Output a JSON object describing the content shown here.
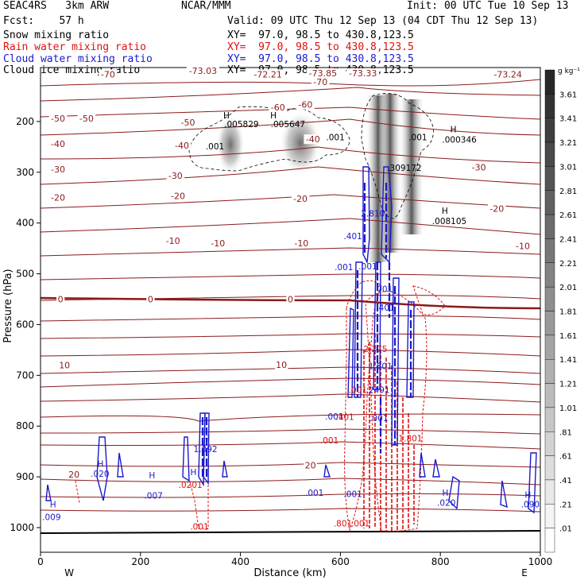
{
  "header": {
    "model": "SEAC4RS   3km ARW",
    "center": "NCAR/MMM",
    "init": "Init: 00 UTC Tue 10 Sep 13",
    "fcst": "Fcst:    57 h",
    "valid": "Valid: 09 UTC Thu 12 Sep 13 (04 CDT Thu 12 Sep 13)"
  },
  "legend": [
    {
      "name": "Snow mixing ratio",
      "xy": "XY=  97.0, 98.5 to 430.8,123.5",
      "color": "#000000"
    },
    {
      "name": "Rain water mixing ratio",
      "xy": "XY=  97.0, 98.5 to 430.8,123.5",
      "color": "#e01010"
    },
    {
      "name": "Cloud water mixing ratio",
      "xy": "XY=  97.0, 98.5 to 430.8,123.5",
      "color": "#1a1acc"
    },
    {
      "name": "Cloud ice mixing ratio",
      "xy": "XY=  97.0, 98.5 to 430.8,123.5",
      "color": "#000000"
    }
  ],
  "colorbar": {
    "unit": "g kg⁻¹",
    "labels": [
      "3.61",
      "3.41",
      "3.21",
      "3.01",
      "2.81",
      "2.61",
      "2.41",
      "2.21",
      "2.01",
      "1.81",
      "1.61",
      "1.41",
      "1.21",
      "1.01",
      ".81",
      ".61",
      ".41",
      ".21",
      ".01"
    ]
  },
  "colors": {
    "temperature": "#8b1a1a",
    "rain": "#e01010",
    "cloud_water": "#1a1acc",
    "ice": "#000000"
  },
  "chart_data": {
    "type": "cross-section",
    "xlabel": "Distance (km)",
    "ylabel": "Pressure (hPa)",
    "xlim": [
      0,
      1000
    ],
    "ylim": [
      1050,
      100
    ],
    "xticks": [
      0,
      200,
      400,
      600,
      800,
      1000
    ],
    "yticks": [
      1000,
      900,
      800,
      700,
      600,
      500,
      400,
      300,
      200
    ],
    "direction_labels": {
      "left": "W",
      "right": "E"
    },
    "temperature_labels": [
      {
        "x": 135,
        "p": 110,
        "text": "-70"
      },
      {
        "x": 325,
        "p": 103,
        "text": "-73.03"
      },
      {
        "x": 455,
        "p": 110,
        "text": "-72.21"
      },
      {
        "x": 565,
        "p": 108,
        "text": "-73.85"
      },
      {
        "x": 645,
        "p": 108,
        "text": "-73.33"
      },
      {
        "x": 560,
        "p": 125,
        "text": "-70"
      },
      {
        "x": 935,
        "p": 110,
        "text": "-73.24"
      },
      {
        "x": 475,
        "p": 175,
        "text": "-60"
      },
      {
        "x": 530,
        "p": 170,
        "text": "-60"
      },
      {
        "x": 35,
        "p": 197,
        "text": "-50"
      },
      {
        "x": 92,
        "p": 197,
        "text": "-50"
      },
      {
        "x": 295,
        "p": 205,
        "text": "-50"
      },
      {
        "x": 35,
        "p": 247,
        "text": "-40"
      },
      {
        "x": 283,
        "p": 250,
        "text": "-40"
      },
      {
        "x": 545,
        "p": 238,
        "text": "-40"
      },
      {
        "x": 35,
        "p": 297,
        "text": "-30"
      },
      {
        "x": 270,
        "p": 310,
        "text": "-30"
      },
      {
        "x": 877,
        "p": 293,
        "text": "-30"
      },
      {
        "x": 35,
        "p": 353,
        "text": "-20"
      },
      {
        "x": 275,
        "p": 350,
        "text": "-20"
      },
      {
        "x": 520,
        "p": 355,
        "text": "-20"
      },
      {
        "x": 913,
        "p": 375,
        "text": "-20"
      },
      {
        "x": 265,
        "p": 438,
        "text": "-10"
      },
      {
        "x": 355,
        "p": 443,
        "text": "-10"
      },
      {
        "x": 522,
        "p": 443,
        "text": "-10"
      },
      {
        "x": 965,
        "p": 448,
        "text": "-10"
      },
      {
        "x": 40,
        "p": 553,
        "text": "0"
      },
      {
        "x": 220,
        "p": 553,
        "text": "0"
      },
      {
        "x": 500,
        "p": 553,
        "text": "0"
      },
      {
        "x": 48,
        "p": 683,
        "text": "10"
      },
      {
        "x": 482,
        "p": 682,
        "text": "10"
      },
      {
        "x": 67,
        "p": 898,
        "text": "20"
      },
      {
        "x": 540,
        "p": 880,
        "text": "20"
      }
    ],
    "max_labels": [
      {
        "x": 25,
        "p": 960,
        "text": "H",
        "color": "blue"
      },
      {
        "x": 22,
        "p": 985,
        "text": ".009",
        "color": "blue"
      },
      {
        "x": 120,
        "p": 880,
        "text": "H",
        "color": "blue"
      },
      {
        "x": 119,
        "p": 900,
        "text": ".020",
        "color": "blue"
      },
      {
        "x": 223,
        "p": 903,
        "text": "H",
        "color": "blue"
      },
      {
        "x": 226,
        "p": 943,
        "text": ".007",
        "color": "blue"
      },
      {
        "x": 306,
        "p": 897,
        "text": "H",
        "color": "blue"
      },
      {
        "x": 300,
        "p": 922,
        "text": ".0201",
        "color": "red"
      },
      {
        "x": 332,
        "p": 831,
        "text": "H",
        "color": "blue"
      },
      {
        "x": 330,
        "p": 851,
        "text": "1.092",
        "color": "blue"
      },
      {
        "x": 372,
        "p": 194,
        "text": "H",
        "color": "black"
      },
      {
        "x": 402,
        "p": 211,
        "text": ".005829",
        "color": "black"
      },
      {
        "x": 466,
        "p": 194,
        "text": "H",
        "color": "black"
      },
      {
        "x": 495,
        "p": 211,
        "text": ".005647",
        "color": "black"
      },
      {
        "x": 349,
        "p": 255,
        "text": ".001",
        "color": "black"
      },
      {
        "x": 590,
        "p": 237,
        "text": ".001",
        "color": "black"
      },
      {
        "x": 755,
        "p": 237,
        "text": ".001",
        "color": "black"
      },
      {
        "x": 826,
        "p": 221,
        "text": "H",
        "color": "black"
      },
      {
        "x": 838,
        "p": 242,
        "text": ".000346",
        "color": "black"
      },
      {
        "x": 728,
        "p": 297,
        "text": ".309172",
        "color": "black"
      },
      {
        "x": 809,
        "p": 382,
        "text": "H",
        "color": "black"
      },
      {
        "x": 818,
        "p": 402,
        "text": ".008105",
        "color": "black"
      },
      {
        "x": 665,
        "p": 387,
        "text": "2.810",
        "color": "blue"
      },
      {
        "x": 625,
        "p": 432,
        "text": ".401",
        "color": "blue"
      },
      {
        "x": 607,
        "p": 493,
        "text": ".001",
        "color": "blue"
      },
      {
        "x": 655,
        "p": 491,
        "text": ".001",
        "color": "blue"
      },
      {
        "x": 686,
        "p": 536,
        "text": ".001",
        "color": "blue"
      },
      {
        "x": 690,
        "p": 573,
        "text": ".401",
        "color": "blue"
      },
      {
        "x": 670,
        "p": 654,
        "text": "2.275",
        "color": "red"
      },
      {
        "x": 680,
        "p": 688,
        "text": "1.801",
        "color": "blue"
      },
      {
        "x": 635,
        "p": 735,
        "text": ".001",
        "color": "red"
      },
      {
        "x": 675,
        "p": 735,
        "text": ".2491",
        "color": "blue"
      },
      {
        "x": 588,
        "p": 787,
        "text": ".001",
        "color": "blue"
      },
      {
        "x": 609,
        "p": 788,
        "text": ".401",
        "color": "red"
      },
      {
        "x": 578,
        "p": 834,
        "text": ".001",
        "color": "red"
      },
      {
        "x": 677,
        "p": 790,
        "text": ".001",
        "color": "blue"
      },
      {
        "x": 740,
        "p": 830,
        "text": "1.801",
        "color": "red"
      },
      {
        "x": 625,
        "p": 940,
        "text": ".001",
        "color": "blue"
      },
      {
        "x": 548,
        "p": 937,
        "text": ".001",
        "color": "blue"
      },
      {
        "x": 605,
        "p": 998,
        "text": ".801",
        "color": "red"
      },
      {
        "x": 640,
        "p": 998,
        "text": ".001",
        "color": "red"
      },
      {
        "x": 810,
        "p": 937,
        "text": "H",
        "color": "blue"
      },
      {
        "x": 812,
        "p": 957,
        "text": ".020",
        "color": "blue"
      },
      {
        "x": 975,
        "p": 941,
        "text": "H",
        "color": "blue"
      },
      {
        "x": 980,
        "p": 960,
        "text": ".090",
        "color": "blue"
      },
      {
        "x": 318,
        "p": 1004,
        "text": ".001",
        "color": "red"
      }
    ]
  }
}
